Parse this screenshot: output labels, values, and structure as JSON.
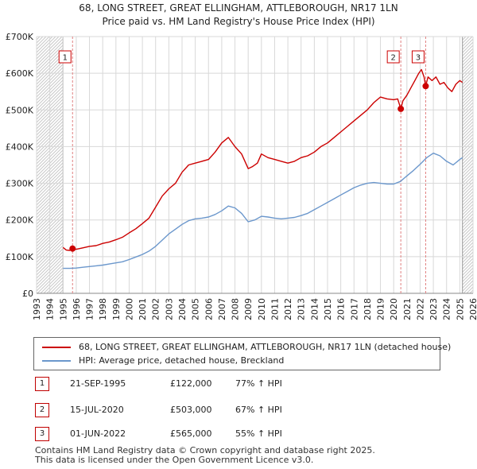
{
  "title_line1": "68, LONG STREET, GREAT ELLINGHAM, ATTLEBOROUGH, NR17 1LN",
  "title_line2": "Price paid vs. HM Land Registry's House Price Index (HPI)",
  "legend": {
    "red_label": "68, LONG STREET, GREAT ELLINGHAM, ATTLEBOROUGH, NR17 1LN (detached house)",
    "blue_label": "HPI: Average price, detached house, Breckland"
  },
  "sales": [
    {
      "num": "1",
      "date": "21-SEP-1995",
      "price": "£122,000",
      "hpi": "77% ↑ HPI"
    },
    {
      "num": "2",
      "date": "15-JUL-2020",
      "price": "£503,000",
      "hpi": "67% ↑ HPI"
    },
    {
      "num": "3",
      "date": "01-JUN-2022",
      "price": "£565,000",
      "hpi": "55% ↑ HPI"
    }
  ],
  "footer_line1": "Contains HM Land Registry data © Crown copyright and database right 2025.",
  "footer_line2": "This data is licensed under the Open Government Licence v3.0.",
  "colors": {
    "red": "#cc0000",
    "blue": "#6b97cc",
    "grid": "#d8d8d8",
    "hatch": "#cfcfcf",
    "vline": "#e08080"
  },
  "chart_data": {
    "type": "line",
    "title": "68, LONG STREET, GREAT ELLINGHAM, ATTLEBOROUGH, NR17 1LN",
    "subtitle": "Price paid vs. HM Land Registry's House Price Index (HPI)",
    "xlabel": "",
    "ylabel": "",
    "xlim": [
      1993,
      2026
    ],
    "ylim": [
      0,
      700000
    ],
    "x_ticks": [
      "1993",
      "1994",
      "1995",
      "1996",
      "1997",
      "1998",
      "1999",
      "2000",
      "2001",
      "2002",
      "2003",
      "2004",
      "2005",
      "2006",
      "2007",
      "2008",
      "2009",
      "2010",
      "2011",
      "2012",
      "2013",
      "2014",
      "2015",
      "2016",
      "2017",
      "2018",
      "2019",
      "2020",
      "2021",
      "2022",
      "2023",
      "2024",
      "2025",
      "2026"
    ],
    "y_ticks": [
      {
        "value": 0,
        "label": "£0"
      },
      {
        "value": 100000,
        "label": "£100K"
      },
      {
        "value": 200000,
        "label": "£200K"
      },
      {
        "value": 300000,
        "label": "£300K"
      },
      {
        "value": 400000,
        "label": "£400K"
      },
      {
        "value": 500000,
        "label": "£500K"
      },
      {
        "value": 600000,
        "label": "£600K"
      },
      {
        "value": 700000,
        "label": "£700K"
      }
    ],
    "grid": true,
    "legend_position": "below",
    "hatched_ranges": [
      [
        1993,
        1995.0
      ],
      [
        2025.2,
        2026
      ]
    ],
    "series": [
      {
        "name": "68, LONG STREET, GREAT ELLINGHAM, ATTLEBOROUGH, NR17 1LN (detached house)",
        "color": "#cc0000",
        "x": [
          1995.0,
          1995.25,
          1995.5,
          1995.72,
          1996.0,
          1996.5,
          1997.0,
          1997.5,
          1998.0,
          1998.5,
          1999.0,
          1999.5,
          2000.0,
          2000.5,
          2001.0,
          2001.5,
          2002.0,
          2002.5,
          2003.0,
          2003.5,
          2004.0,
          2004.5,
          2005.0,
          2005.5,
          2006.0,
          2006.5,
          2007.0,
          2007.5,
          2008.0,
          2008.5,
          2009.0,
          2009.3,
          2009.7,
          2010.0,
          2010.5,
          2011.0,
          2011.5,
          2012.0,
          2012.5,
          2013.0,
          2013.5,
          2014.0,
          2014.5,
          2015.0,
          2015.5,
          2016.0,
          2016.5,
          2017.0,
          2017.5,
          2018.0,
          2018.5,
          2019.0,
          2019.5,
          2020.0,
          2020.3,
          2020.54,
          2020.7,
          2021.0,
          2021.3,
          2021.6,
          2021.9,
          2022.1,
          2022.3,
          2022.42,
          2022.6,
          2022.9,
          2023.2,
          2023.5,
          2023.8,
          2024.1,
          2024.4,
          2024.7,
          2025.0,
          2025.2
        ],
        "y": [
          125000,
          118000,
          117000,
          122000,
          120000,
          124000,
          128000,
          130000,
          136000,
          140000,
          146000,
          153000,
          165000,
          176000,
          190000,
          205000,
          235000,
          265000,
          285000,
          300000,
          330000,
          350000,
          355000,
          360000,
          365000,
          385000,
          410000,
          425000,
          400000,
          380000,
          340000,
          345000,
          355000,
          380000,
          370000,
          365000,
          360000,
          355000,
          360000,
          370000,
          375000,
          385000,
          400000,
          410000,
          425000,
          440000,
          455000,
          470000,
          485000,
          500000,
          520000,
          535000,
          530000,
          528000,
          530000,
          503000,
          525000,
          540000,
          560000,
          580000,
          600000,
          610000,
          590000,
          565000,
          590000,
          580000,
          590000,
          570000,
          575000,
          560000,
          550000,
          570000,
          580000,
          575000
        ]
      },
      {
        "name": "HPI: Average price, detached house, Breckland",
        "color": "#6b97cc",
        "x": [
          1995.0,
          1995.5,
          1996.0,
          1996.5,
          1997.0,
          1997.5,
          1998.0,
          1998.5,
          1999.0,
          1999.5,
          2000.0,
          2000.5,
          2001.0,
          2001.5,
          2002.0,
          2002.5,
          2003.0,
          2003.5,
          2004.0,
          2004.5,
          2005.0,
          2005.5,
          2006.0,
          2006.5,
          2007.0,
          2007.5,
          2008.0,
          2008.5,
          2009.0,
          2009.5,
          2010.0,
          2010.5,
          2011.0,
          2011.5,
          2012.0,
          2012.5,
          2013.0,
          2013.5,
          2014.0,
          2014.5,
          2015.0,
          2015.5,
          2016.0,
          2016.5,
          2017.0,
          2017.5,
          2018.0,
          2018.5,
          2019.0,
          2019.5,
          2020.0,
          2020.5,
          2021.0,
          2021.5,
          2022.0,
          2022.5,
          2023.0,
          2023.5,
          2024.0,
          2024.5,
          2025.0,
          2025.2
        ],
        "y": [
          68000,
          68000,
          69000,
          71000,
          73000,
          75000,
          77000,
          80000,
          83000,
          86000,
          92000,
          99000,
          106000,
          115000,
          128000,
          145000,
          162000,
          175000,
          188000,
          198000,
          203000,
          205000,
          208000,
          215000,
          225000,
          238000,
          233000,
          218000,
          195000,
          200000,
          210000,
          208000,
          205000,
          203000,
          205000,
          207000,
          212000,
          218000,
          228000,
          238000,
          248000,
          258000,
          268000,
          278000,
          288000,
          295000,
          300000,
          302000,
          300000,
          298000,
          298000,
          305000,
          320000,
          335000,
          352000,
          370000,
          382000,
          375000,
          360000,
          350000,
          365000,
          370000
        ]
      }
    ],
    "markers": [
      {
        "label": "1",
        "x": 1995.72,
        "y": 122000
      },
      {
        "label": "2",
        "x": 2020.54,
        "y": 503000
      },
      {
        "label": "3",
        "x": 2022.42,
        "y": 565000
      }
    ]
  }
}
